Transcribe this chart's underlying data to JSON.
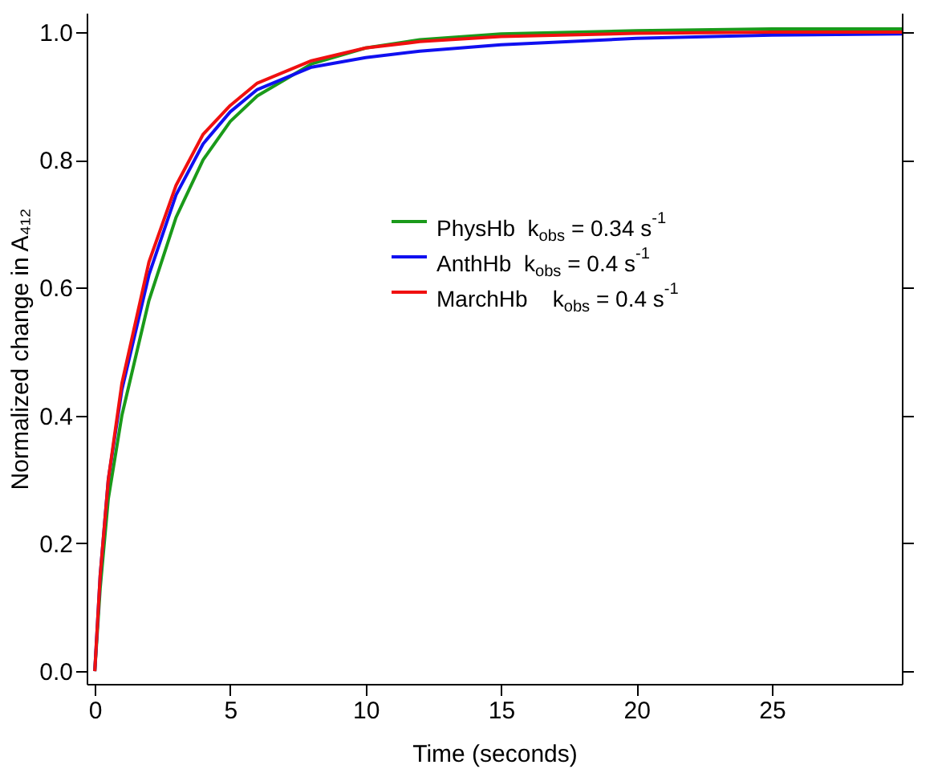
{
  "chart_data": {
    "type": "line",
    "xlabel": "Time (seconds)",
    "ylabel": "Normalized change in A₄₁₂",
    "xlim": [
      -0.3,
      29.8
    ],
    "ylim": [
      -0.02,
      1.03
    ],
    "xticks": [
      0,
      5,
      10,
      15,
      20,
      25
    ],
    "yticks": [
      {
        "value": 0,
        "label": "0.0"
      },
      {
        "value": 0.2,
        "label": "0.2"
      },
      {
        "value": 0.4,
        "label": "0.4"
      },
      {
        "value": 0.6,
        "label": "0.6"
      },
      {
        "value": 0.8,
        "label": "0.8"
      },
      {
        "value": 1,
        "label": "1.0"
      }
    ],
    "grid": false,
    "legend": "right",
    "marker": "none",
    "line_style": "solid",
    "x": [
      0,
      0.2,
      0.5,
      1,
      2,
      3,
      4,
      5,
      6,
      8,
      10,
      12,
      15,
      20,
      25,
      29.8
    ],
    "series": [
      {
        "name": "PhysHb  k$_{obs}$ = 0.34 s$^{-1}$",
        "color": "#1a9a1a",
        "values": [
          0,
          0.13,
          0.27,
          0.4,
          0.58,
          0.71,
          0.8,
          0.86,
          0.9,
          0.95,
          0.975,
          0.988,
          0.997,
          1.002,
          1.005,
          1.005
        ]
      },
      {
        "name": "AnthHb  k$_{obs}$ = 0.4 s$^{-1}$",
        "color": "#1010f0",
        "values": [
          0,
          0.15,
          0.3,
          0.44,
          0.62,
          0.745,
          0.825,
          0.875,
          0.91,
          0.945,
          0.96,
          0.97,
          0.98,
          0.99,
          0.995,
          0.997
        ]
      },
      {
        "name": "MarchHb    k$_{obs}$ = 0.4 s$^{-1}$",
        "color": "#f01010",
        "values": [
          0,
          0.15,
          0.3,
          0.45,
          0.64,
          0.76,
          0.84,
          0.885,
          0.92,
          0.955,
          0.975,
          0.985,
          0.993,
          0.998,
          1.0,
          1.0
        ]
      }
    ]
  }
}
